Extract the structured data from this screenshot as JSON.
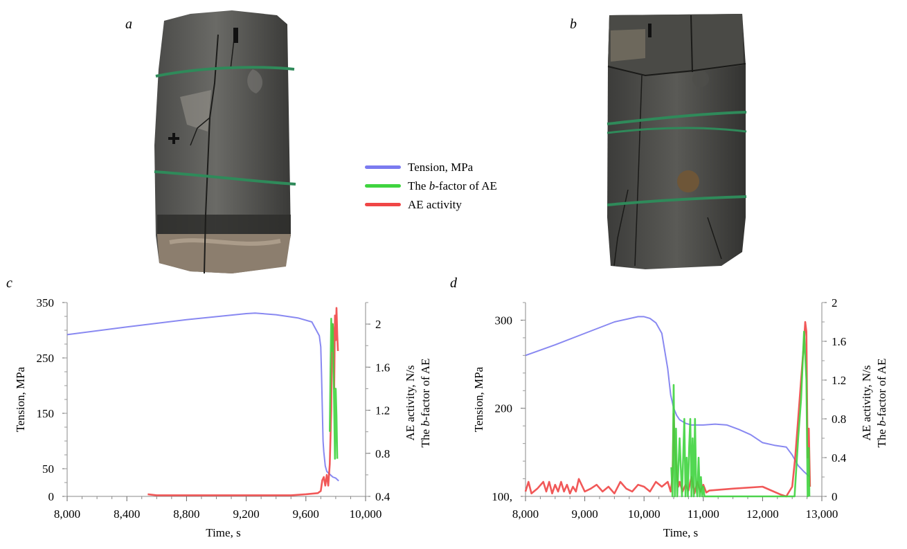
{
  "panel_labels": {
    "a": "a",
    "b": "b",
    "c": "c",
    "d": "d"
  },
  "legend": [
    {
      "pre": "Tension, MPa",
      "italic": "",
      "post": "",
      "color": "#7b7bf0"
    },
    {
      "pre": "The ",
      "italic": "b",
      "post": "-factor of AE",
      "color": "#3fd43f"
    },
    {
      "pre": "AE activity",
      "italic": "",
      "post": "",
      "color": "#f04646"
    }
  ],
  "colors": {
    "tension": "#7b7bf0",
    "bfactor": "#3fd43f",
    "ae": "#f04646"
  },
  "chart_data": [
    {
      "type": "line",
      "panel": "c",
      "xlabel": "Time, s",
      "ylabel": "Tension, MPa",
      "ylabel_right_1": "AE activity, N/s",
      "ylabel_right_2_pre": "The ",
      "ylabel_right_2_italic": "b",
      "ylabel_right_2_post": "-factor of AE",
      "xlim": [
        8000,
        10000
      ],
      "x_ticks": [
        8000,
        8400,
        8800,
        9200,
        9600,
        10000
      ],
      "x_tick_labels": [
        "8,000",
        "8,400",
        "8,800",
        "9,200",
        "9,600",
        "10,000"
      ],
      "ylim_left": [
        0,
        350
      ],
      "y_left_ticks": [
        0,
        50,
        150,
        250,
        350
      ],
      "y_left_tick_labels": [
        "0",
        "50",
        "150",
        "250",
        "350"
      ],
      "ylim_right": [
        0.4,
        2.2
      ],
      "y_right_ticks": [
        0.4,
        0.8,
        1.2,
        1.6,
        2.0
      ],
      "y_right_tick_labels": [
        "0.4",
        "0.8",
        "1.2",
        "1.6",
        "2"
      ],
      "series": [
        {
          "key": "tension",
          "axis": "left",
          "x": [
            8000,
            8400,
            8800,
            9200,
            9260,
            9400,
            9550,
            9640,
            9670,
            9690,
            9700,
            9705,
            9710,
            9715,
            9720,
            9730,
            9740,
            9760,
            9780,
            9800,
            9820
          ],
          "y": [
            292,
            306,
            319,
            330,
            331,
            328,
            322,
            315,
            300,
            290,
            270,
            220,
            160,
            100,
            80,
            55,
            45,
            40,
            35,
            33,
            28
          ]
        },
        {
          "key": "ae",
          "axis": "right",
          "x": [
            8540,
            8600,
            8700,
            9000,
            9300,
            9500,
            9600,
            9680,
            9700,
            9710,
            9720,
            9730,
            9740,
            9750,
            9760,
            9770,
            9775,
            9780,
            9785,
            9790,
            9795,
            9800,
            9805,
            9810,
            9815
          ],
          "y": [
            0.42,
            0.41,
            0.41,
            0.41,
            0.41,
            0.41,
            0.42,
            0.43,
            0.45,
            0.55,
            0.58,
            0.5,
            0.6,
            0.5,
            0.7,
            1.2,
            1.8,
            2.0,
            1.9,
            1.4,
            2.08,
            1.85,
            2.15,
            1.9,
            1.75
          ]
        },
        {
          "key": "bfactor",
          "axis": "right",
          "x": [
            9760,
            9765,
            9770,
            9775,
            9780,
            9785,
            9790,
            9795,
            9800,
            9805,
            9810
          ],
          "y": [
            1.0,
            1.6,
            2.05,
            1.75,
            2.0,
            1.6,
            1.2,
            0.75,
            1.4,
            1.15,
            0.75
          ]
        }
      ]
    },
    {
      "type": "line",
      "panel": "d",
      "xlabel": "Time, s",
      "ylabel": "Tension, MPa",
      "ylabel_right_1": "AE activity, N/s",
      "ylabel_right_2_pre": "The ",
      "ylabel_right_2_italic": "b",
      "ylabel_right_2_post": "-factor of AE",
      "xlim": [
        8000,
        13000
      ],
      "x_ticks": [
        8000,
        9000,
        10000,
        11000,
        12000,
        13000
      ],
      "x_tick_labels": [
        "8,000",
        "9,000",
        "10,000",
        "11,000",
        "12,000",
        "13,000"
      ],
      "ylim_left": [
        100,
        320
      ],
      "y_left_ticks": [
        100,
        200,
        300
      ],
      "y_left_tick_labels": [
        "100,",
        "200",
        "300"
      ],
      "ylim_right": [
        0,
        2
      ],
      "y_right_ticks": [
        0,
        0.4,
        0.8,
        1.2,
        1.6,
        2.0
      ],
      "y_right_tick_labels": [
        "0",
        "0.4",
        "0.8",
        "1.2",
        "1.6",
        "2"
      ],
      "series": [
        {
          "key": "tension",
          "axis": "left",
          "x": [
            8000,
            8500,
            9000,
            9500,
            9900,
            10000,
            10100,
            10200,
            10300,
            10400,
            10450,
            10500,
            10550,
            10600,
            10700,
            10800,
            10900,
            11000,
            11200,
            11400,
            11600,
            11800,
            12000,
            12200,
            12400,
            12500,
            12600,
            12700,
            12750,
            12800
          ],
          "y": [
            260,
            272,
            285,
            298,
            304,
            304,
            302,
            297,
            285,
            245,
            215,
            200,
            192,
            187,
            183,
            181,
            181,
            181,
            182,
            181,
            176,
            170,
            161,
            158,
            156,
            147,
            135,
            128,
            125,
            122
          ]
        },
        {
          "key": "ae",
          "axis": "right",
          "x": [
            8000,
            8050,
            8100,
            8200,
            8300,
            8350,
            8400,
            8450,
            8500,
            8550,
            8600,
            8650,
            8700,
            8750,
            8800,
            8850,
            8900,
            9000,
            9100,
            9200,
            9300,
            9400,
            9500,
            9600,
            9700,
            9800,
            9900,
            10000,
            10100,
            10200,
            10300,
            10400,
            10450,
            10480,
            10500,
            10520,
            10550,
            10580,
            10600,
            10650,
            10700,
            10750,
            10800,
            10850,
            10900,
            10950,
            11000,
            11050,
            11100,
            11500,
            12000,
            12300,
            12400,
            12500,
            12550,
            12600,
            12650,
            12700,
            12720,
            12740,
            12760,
            12780,
            12800
          ],
          "y": [
            0.05,
            0.15,
            0.03,
            0.08,
            0.15,
            0.05,
            0.15,
            0.03,
            0.12,
            0.05,
            0.15,
            0.05,
            0.12,
            0.03,
            0.1,
            0.05,
            0.18,
            0.05,
            0.08,
            0.12,
            0.05,
            0.1,
            0.03,
            0.15,
            0.08,
            0.05,
            0.12,
            0.1,
            0.05,
            0.15,
            0.1,
            0.15,
            0.05,
            0.2,
            0.85,
            0.5,
            0.25,
            0.1,
            0.15,
            0.05,
            0.12,
            0.06,
            0.2,
            0.03,
            0.15,
            0.05,
            0.12,
            0.04,
            0.06,
            0.08,
            0.1,
            0.02,
            0.0,
            0.1,
            0.4,
            0.8,
            1.2,
            1.6,
            1.8,
            1.7,
            0.4,
            0.7,
            0.1
          ]
        },
        {
          "key": "bfactor",
          "axis": "right",
          "x": [
            10460,
            10480,
            10500,
            10520,
            10540,
            10560,
            10600,
            10640,
            10680,
            10700,
            10720,
            10740,
            10760,
            10780,
            10800,
            10820,
            10840,
            10860,
            10880,
            10900,
            10920,
            10940,
            10960,
            10980,
            11000,
            11020,
            11500,
            12000,
            12500,
            12540,
            12600,
            12650,
            12700,
            12740,
            12760,
            12780,
            12790
          ],
          "y": [
            0.3,
            0.0,
            1.15,
            0.0,
            0.7,
            0.0,
            0.6,
            0.0,
            0.8,
            0.0,
            0.4,
            0.0,
            0.5,
            0.8,
            0.0,
            0.6,
            0.0,
            0.8,
            0.1,
            0.0,
            0.4,
            0.0,
            0.2,
            0.0,
            0.1,
            0.0,
            0.0,
            0.0,
            0.0,
            0.0,
            0.6,
            1.0,
            1.7,
            1.2,
            0.0,
            0.5,
            0.0
          ]
        }
      ]
    }
  ]
}
